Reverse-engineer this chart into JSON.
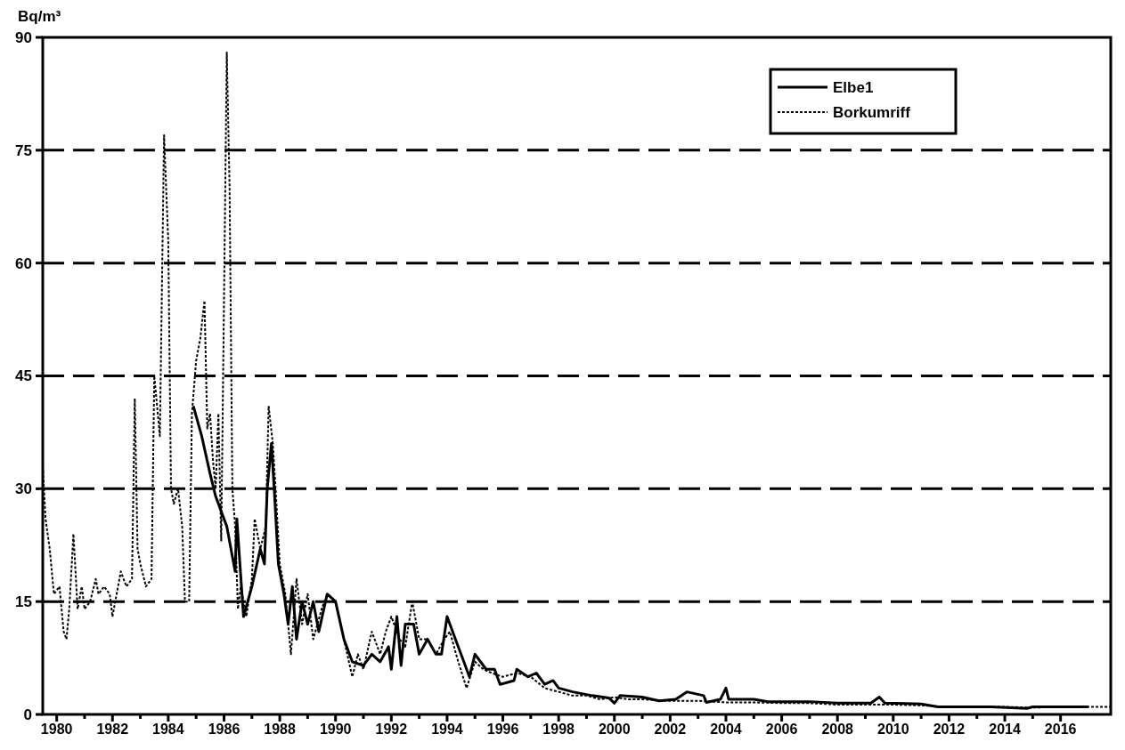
{
  "chart_data": {
    "type": "line",
    "ylabel": "Bq/m³",
    "xlim": [
      1979.5,
      2017.8
    ],
    "ylim": [
      0,
      90
    ],
    "xticks": [
      1980,
      {
        "value": 1981,
        "label": null
      },
      1982,
      {
        "value": 1983,
        "label": null
      },
      1984,
      {
        "value": 1985,
        "label": null
      },
      1986,
      {
        "value": 1987,
        "label": null
      },
      1988,
      {
        "value": 1989,
        "label": null
      },
      1990,
      {
        "value": 1991,
        "label": null
      },
      1992,
      {
        "value": 1993,
        "label": null
      },
      1994,
      {
        "value": 1995,
        "label": null
      },
      1996,
      {
        "value": 1997,
        "label": null
      },
      1998,
      {
        "value": 1999,
        "label": null
      },
      2000,
      {
        "value": 2001,
        "label": null
      },
      2002,
      {
        "value": 2003,
        "label": null
      },
      2004,
      {
        "value": 2005,
        "label": null
      },
      2006,
      {
        "value": 2007,
        "label": null
      },
      2008,
      {
        "value": 2009,
        "label": null
      },
      2010,
      {
        "value": 2011,
        "label": null
      },
      2012,
      {
        "value": 2013,
        "label": null
      },
      2014,
      {
        "value": 2015,
        "label": null
      },
      2016
    ],
    "yticks": [
      0,
      15,
      30,
      45,
      60,
      75,
      90
    ],
    "grid": "y",
    "legend": "top right",
    "series": [
      {
        "name": "Elbe1",
        "color": "#000000",
        "line_style": "solid",
        "x": [
          1984.9,
          1985.2,
          1985.5,
          1985.7,
          1985.9,
          1986.1,
          1986.3,
          1986.4,
          1986.46,
          1986.7,
          1987.0,
          1987.3,
          1987.45,
          1987.55,
          1987.7,
          1987.8,
          1987.95,
          1988.15,
          1988.3,
          1988.45,
          1988.6,
          1988.8,
          1989.0,
          1989.2,
          1989.4,
          1989.7,
          1990.0,
          1990.3,
          1990.6,
          1991.0,
          1991.3,
          1991.6,
          1991.9,
          1992.0,
          1992.2,
          1992.35,
          1992.5,
          1992.8,
          1993.0,
          1993.3,
          1993.6,
          1993.8,
          1994.0,
          1994.3,
          1994.6,
          1994.8,
          1995.0,
          1995.4,
          1995.7,
          1995.9,
          1996.4,
          1996.5,
          1996.9,
          1997.2,
          1997.5,
          1997.8,
          1998.0,
          1998.5,
          1999.2,
          1999.8,
          2000.0,
          2000.2,
          2001.0,
          2001.6,
          2002.2,
          2002.6,
          2003.2,
          2003.3,
          2003.8,
          2004.0,
          2004.1,
          2005.0,
          2005.5,
          2007.0,
          2008.0,
          2009.2,
          2009.5,
          2009.7,
          2011.0,
          2011.6,
          2013.5,
          2014.8,
          2015.0,
          2017.0
        ],
        "values": [
          41,
          37,
          32,
          29,
          27,
          25,
          21,
          19,
          26,
          13,
          17,
          22,
          20,
          30,
          36,
          30,
          20,
          16,
          12,
          17,
          10,
          15,
          12,
          15,
          11,
          16,
          15,
          10,
          7,
          6.5,
          8,
          7,
          9,
          6,
          13,
          6.5,
          12,
          12,
          8,
          10,
          8,
          8,
          13,
          10,
          7,
          5,
          8,
          6,
          6,
          4,
          4.5,
          6,
          5,
          5.5,
          4,
          4.5,
          3.5,
          3,
          2.5,
          2.2,
          1.5,
          2.5,
          2.3,
          1.8,
          2,
          3,
          2.5,
          1.6,
          2,
          3.5,
          2,
          2,
          1.7,
          1.7,
          1.5,
          1.5,
          2.3,
          1.5,
          1.4,
          1,
          1,
          0.8,
          1,
          1
        ]
      },
      {
        "name": "Borkumriff",
        "color": "#000000",
        "line_style": "dotted",
        "x": [
          1979.5,
          1979.6,
          1979.75,
          1979.9,
          1980.1,
          1980.25,
          1980.35,
          1980.45,
          1980.6,
          1980.75,
          1980.9,
          1981.0,
          1981.2,
          1981.4,
          1981.5,
          1981.7,
          1981.9,
          1982.0,
          1982.2,
          1982.3,
          1982.5,
          1982.7,
          1982.8,
          1982.9,
          1983.0,
          1983.2,
          1983.4,
          1983.5,
          1983.7,
          1983.85,
          1984.0,
          1984.1,
          1984.2,
          1984.35,
          1984.5,
          1984.6,
          1984.75,
          1984.85,
          1985.0,
          1985.15,
          1985.3,
          1985.4,
          1985.5,
          1985.6,
          1985.7,
          1985.8,
          1985.9,
          1986.0,
          1986.1,
          1986.2,
          1986.3,
          1986.4,
          1986.5,
          1986.6,
          1986.8,
          1987.0,
          1987.1,
          1987.3,
          1987.5,
          1987.6,
          1987.75,
          1987.85,
          1988.0,
          1988.2,
          1988.4,
          1988.6,
          1988.8,
          1989.0,
          1989.2,
          1989.5,
          1989.7,
          1990.0,
          1990.3,
          1990.6,
          1990.8,
          1991.0,
          1991.3,
          1991.6,
          1991.8,
          1992.0,
          1992.3,
          1992.5,
          1992.75,
          1993.0,
          1993.3,
          1993.6,
          1993.9,
          1994.1,
          1994.4,
          1994.7,
          1995.0,
          1995.3,
          1995.6,
          1996.0,
          1996.5,
          1997.0,
          1997.5,
          1998.0,
          1998.5,
          1999.0,
          1999.5,
          2000.0,
          2000.5,
          2001.0,
          2002.0,
          2003.0,
          2004.0,
          2005.0,
          2006.0,
          2007.0,
          2008.0,
          2009.0,
          2010.0,
          2011.0,
          2012.0,
          2013.0,
          2014.0,
          2015.0,
          2016.0,
          2017.8
        ],
        "values": [
          33,
          26,
          22,
          16,
          17,
          11,
          10,
          14,
          24,
          14,
          17,
          14,
          15,
          18,
          16,
          17,
          16,
          13,
          17,
          19,
          17,
          18,
          42,
          22,
          20,
          17,
          18,
          45,
          37,
          77,
          63,
          30,
          28,
          30,
          25,
          15,
          15,
          40,
          47,
          50,
          55,
          38,
          40,
          34,
          30,
          40,
          23,
          55,
          88,
          70,
          30,
          25,
          14,
          17,
          13,
          18,
          26,
          22,
          25,
          41,
          36,
          30,
          20,
          16,
          8,
          18,
          12,
          16,
          10,
          14,
          16,
          15,
          10,
          5,
          8,
          6,
          11,
          8,
          11,
          13,
          10,
          9,
          15,
          10,
          10,
          8,
          10,
          11,
          7,
          3.5,
          7,
          6,
          5.5,
          5,
          5.5,
          5,
          3.5,
          3,
          2.5,
          2.5,
          2,
          2.3,
          2,
          2,
          1.8,
          1.8,
          1.6,
          1.6,
          1.5,
          1.5,
          1.3,
          1.3,
          1.3,
          1.2,
          1,
          1,
          1,
          0.9,
          1,
          1
        ]
      }
    ]
  }
}
